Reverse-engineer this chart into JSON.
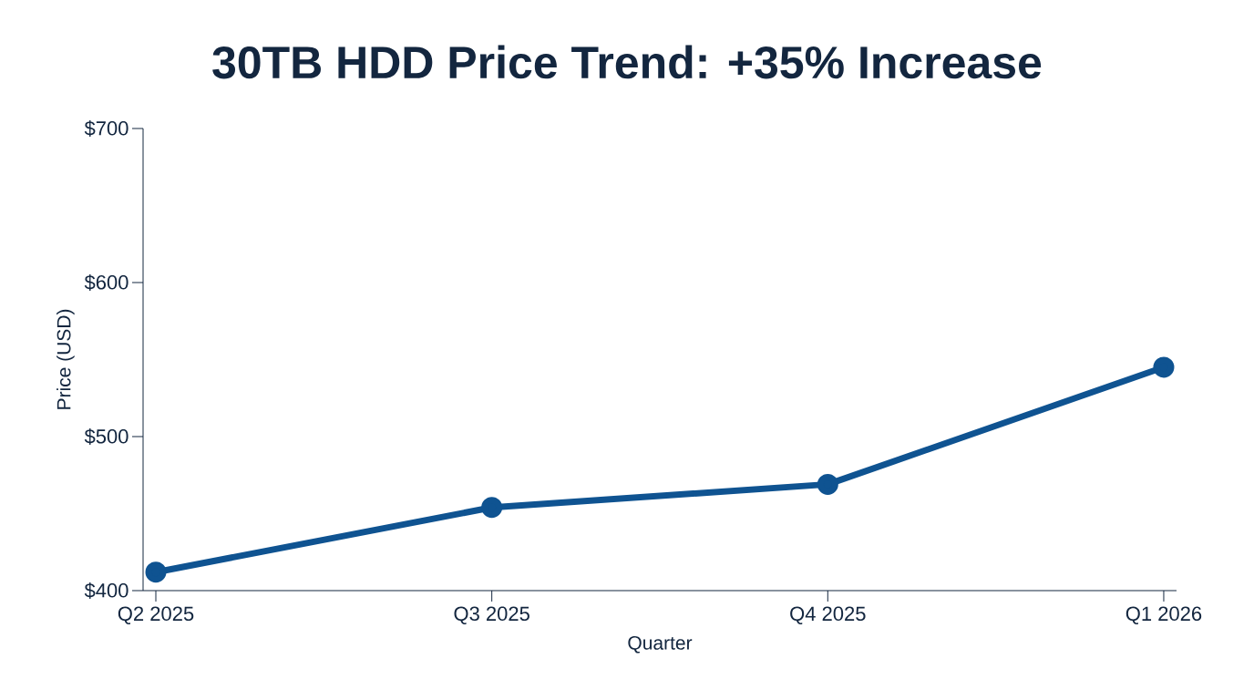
{
  "chart_data": {
    "type": "line",
    "title": "30TB HDD Price Trend: +35% Increase",
    "xlabel": "Quarter",
    "ylabel": "Price (USD)",
    "categories": [
      "Q2 2025",
      "Q3 2025",
      "Q4 2025",
      "Q1 2026"
    ],
    "series": [
      {
        "color": "#0f5391",
        "values": [
          412,
          454,
          469,
          545
        ]
      }
    ],
    "ylim": [
      400,
      700
    ],
    "yticks": [
      {
        "value": 400,
        "label": "$400"
      },
      {
        "value": 500,
        "label": "$500"
      },
      {
        "value": 600,
        "label": "$600"
      },
      {
        "value": 700,
        "label": "$700"
      }
    ],
    "marker": "circle"
  }
}
